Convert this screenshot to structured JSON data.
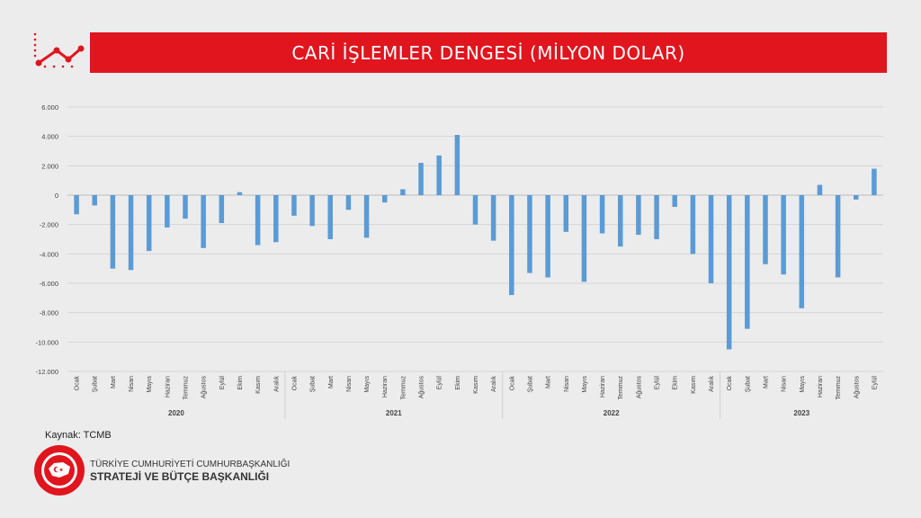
{
  "header": {
    "title": "CARİ İŞLEMLER DENGESİ (MİLYON DOLAR)",
    "accent_color": "#e0151e",
    "icon": "trend-line-icon"
  },
  "chart_data": {
    "type": "bar",
    "title": "CARİ İŞLEMLER DENGESİ (MİLYON DOLAR)",
    "ylim": [
      -12000,
      6000
    ],
    "yticks": [
      6000,
      4000,
      2000,
      0,
      -2000,
      -4000,
      -6000,
      -8000,
      -10000,
      -12000
    ],
    "ytick_labels": [
      "6.000",
      "4.000",
      "2.000",
      "0",
      "-2.000",
      "-4.000",
      "-6.000",
      "-8.000",
      "-10.000",
      "-12.000"
    ],
    "grid": true,
    "bar_color": "#5b9bd5",
    "categories": [
      "Ocak",
      "Şubat",
      "Mart",
      "Nisan",
      "Mayıs",
      "Haziran",
      "Temmuz",
      "Ağustos",
      "Eylül",
      "Ekim",
      "Kasım",
      "Aralık",
      "Ocak",
      "Şubat",
      "Mart",
      "Nisan",
      "Mayıs",
      "Haziran",
      "Temmuz",
      "Ağustos",
      "Eylül",
      "Ekim",
      "Kasım",
      "Aralık",
      "Ocak",
      "Şubat",
      "Mart",
      "Nisan",
      "Mayıs",
      "Haziran",
      "Temmuz",
      "Ağustos",
      "Eylül",
      "Ekim",
      "Kasım",
      "Aralık",
      "Ocak",
      "Şubat",
      "Mart",
      "Nisan",
      "Mayıs",
      "Haziran",
      "Temmuz",
      "Ağustos",
      "Eylül"
    ],
    "years": [
      {
        "label": "2020",
        "count": 12
      },
      {
        "label": "2021",
        "count": 12
      },
      {
        "label": "2022",
        "count": 12
      },
      {
        "label": "2023",
        "count": 9
      }
    ],
    "values": [
      -1300,
      -700,
      -5000,
      -5100,
      -3800,
      -2200,
      -1600,
      -3600,
      -1900,
      200,
      -3400,
      -3200,
      -1400,
      -2100,
      -3000,
      -1000,
      -2900,
      -500,
      400,
      2200,
      2700,
      4100,
      -2000,
      -3100,
      -6800,
      -5300,
      -5600,
      -2500,
      -5900,
      -2600,
      -3500,
      -2700,
      -3000,
      -800,
      -4000,
      -6000,
      -10500,
      -9100,
      -4700,
      -5400,
      -7700,
      700,
      -5600,
      -300,
      1800
    ]
  },
  "footer": {
    "source": "Kaynak: TCMB",
    "institution_line1": "TÜRKİYE CUMHURİYETİ CUMHURBAŞKANLIĞI",
    "institution_line2": "STRATEJİ VE BÜTÇE BAŞKANLIĞI",
    "logo_color": "#e0151e"
  }
}
